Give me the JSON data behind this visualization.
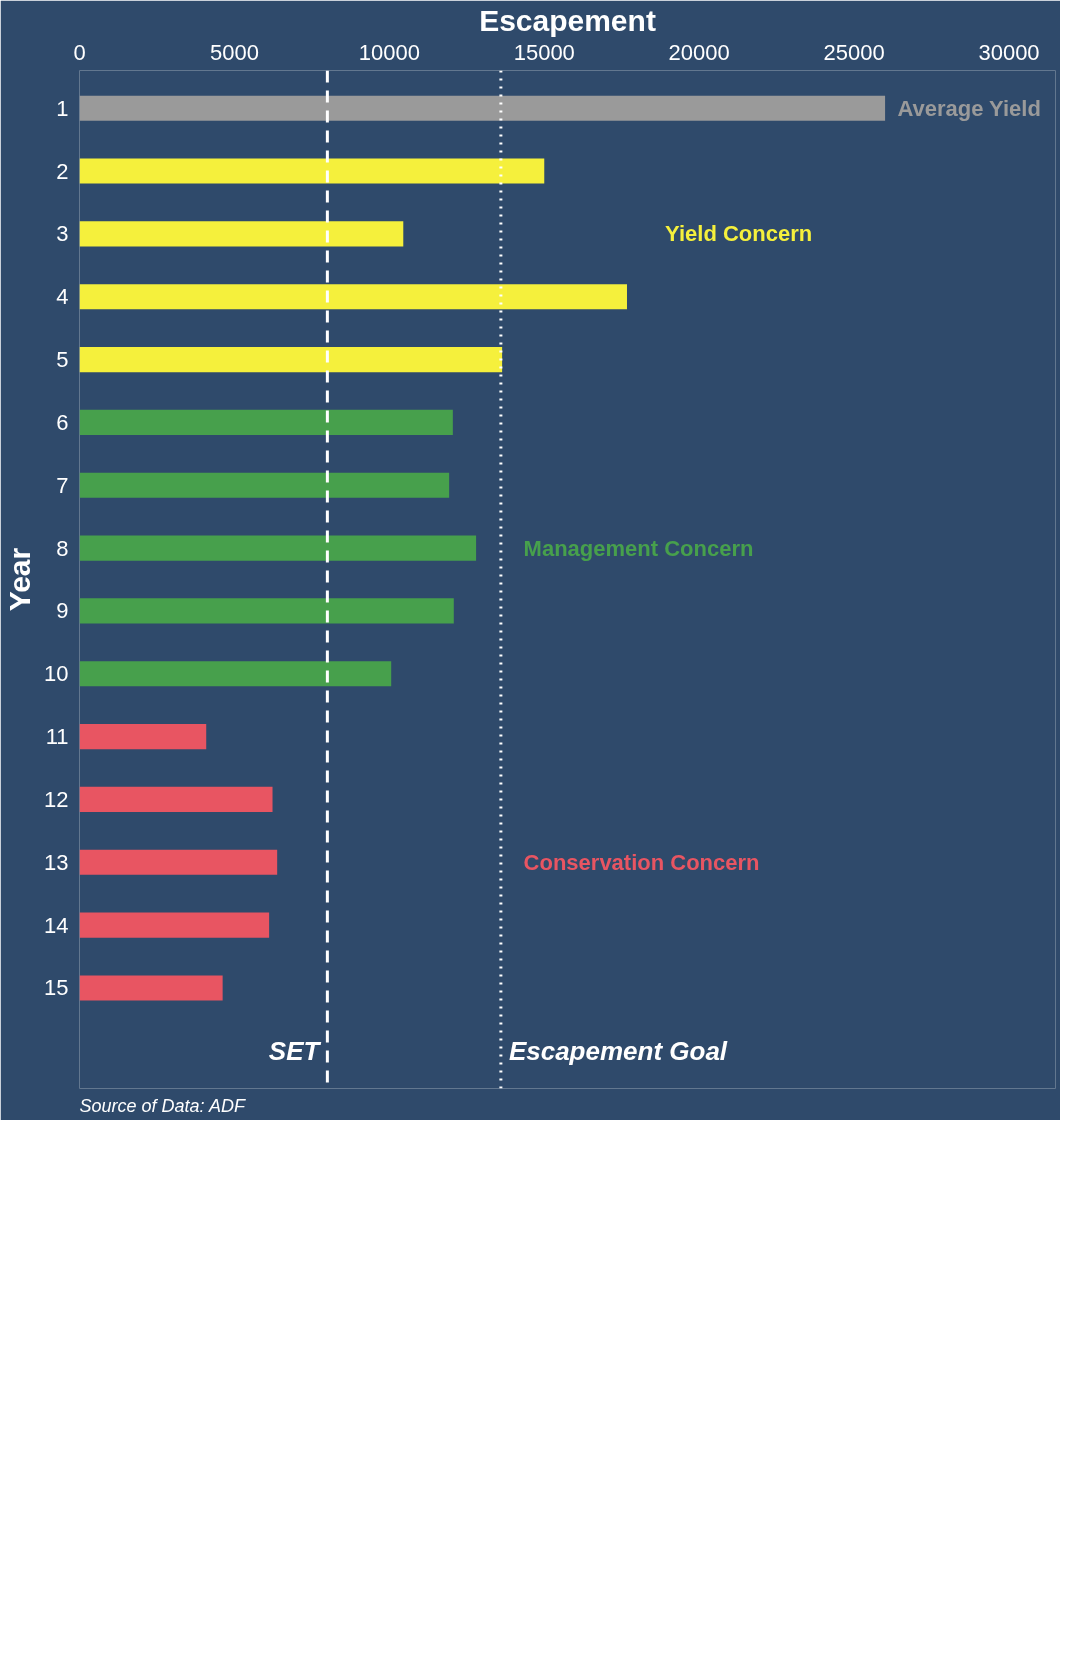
{
  "chart_data": {
    "type": "bar",
    "orientation": "horizontal",
    "xlabel": "Escapement",
    "ylabel": "Year",
    "categories": [
      "1",
      "2",
      "3",
      "4",
      "5",
      "6",
      "7",
      "8",
      "9",
      "10",
      "11",
      "12",
      "13",
      "14",
      "15"
    ],
    "values": [
      26000,
      15000,
      10450,
      17670,
      13640,
      12050,
      11930,
      12800,
      12080,
      10060,
      4090,
      6230,
      6380,
      6120,
      4620
    ],
    "colors": [
      "#9a9a9a",
      "#f5f03c",
      "#f5f03c",
      "#f5f03c",
      "#f5f03c",
      "#47a04c",
      "#47a04c",
      "#47a04c",
      "#47a04c",
      "#47a04c",
      "#e85562",
      "#e85562",
      "#e85562",
      "#e85562",
      "#e85562"
    ],
    "xlim": [
      0,
      31500
    ],
    "xticks": [
      0,
      5000,
      10000,
      15000,
      20000,
      25000,
      30000
    ],
    "ref_lines": [
      {
        "axis": "x",
        "value": 13600,
        "label": "Escapement Goal",
        "color": "#ffffff",
        "line_style": "dotted"
      },
      {
        "axis": "x",
        "value": 8000,
        "label": "SET",
        "color": "#ffffff",
        "line_style": "dashed"
      }
    ],
    "annotations": [
      "Average Yield",
      "Yield Concern",
      "Management Concern",
      "Conservation Concern",
      "Source of Data: ADF"
    ],
    "grid": false
  }
}
